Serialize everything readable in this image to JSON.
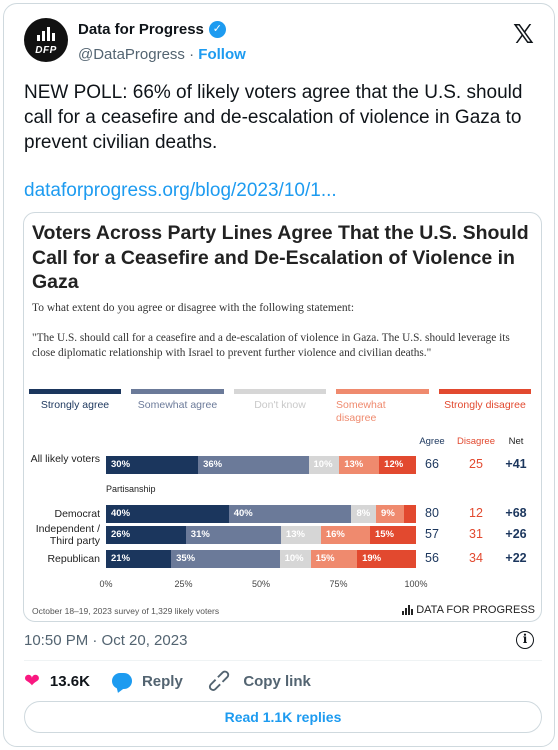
{
  "account": {
    "name": "Data for Progress",
    "handle": "@DataProgress",
    "separator": "·",
    "follow_label": "Follow",
    "avatar_text": "DFP"
  },
  "tweet": {
    "text": "NEW POLL: 66% of likely voters agree that the U.S. should call for a ceasefire and de-escalation of violence in Gaza to prevent civilian deaths.",
    "link": "dataforprogress.org/blog/2023/10/1...",
    "timestamp": "10:50 PM · Oct 20, 2023"
  },
  "chart": {
    "title": "Voters Across Party Lines Agree That the U.S. Should Call for a Ceasefire and De-Escalation of Violence in Gaza",
    "subtitle": "To what extent do you agree or disagree with the following statement:",
    "quote": "\"The U.S. should call for a ceasefire and a de-escalation of violence in Gaza. The U.S. should leverage its close diplomatic relationship with Israel to prevent further violence and civilian deaths.\"",
    "legend": [
      "Strongly agree",
      "Somewhat agree",
      "Don't know",
      "Somewhat disagree",
      "Strongly disagree"
    ],
    "colors": [
      "#1b365d",
      "#6b7a99",
      "#d6d6d6",
      "#ef8a6e",
      "#e2492f"
    ],
    "columns": [
      "Agree",
      "Disagree",
      "Net"
    ],
    "group_label": "Partisanship",
    "footnote": "October 18–19, 2023 survey of 1,329 likely voters",
    "brand": "DATA FOR PROGRESS"
  },
  "chart_data": {
    "type": "bar",
    "stacked": true,
    "orientation": "horizontal",
    "categories": [
      "All likely voters",
      "Democrat",
      "Independent / Third party",
      "Republican"
    ],
    "series": [
      {
        "name": "Strongly agree",
        "values": [
          30,
          40,
          26,
          21
        ],
        "labels": [
          "30%",
          "40%",
          "26%",
          "21%"
        ]
      },
      {
        "name": "Somewhat agree",
        "values": [
          36,
          40,
          31,
          35
        ],
        "labels": [
          "36%",
          "40%",
          "31%",
          "35%"
        ]
      },
      {
        "name": "Don't know",
        "values": [
          10,
          8,
          13,
          10
        ],
        "labels": [
          "10%",
          "8%",
          "13%",
          "10%"
        ]
      },
      {
        "name": "Somewhat disagree",
        "values": [
          13,
          9,
          16,
          15
        ],
        "labels": [
          "13%",
          "9%",
          "16%",
          "15%"
        ]
      },
      {
        "name": "Strongly disagree",
        "values": [
          12,
          4,
          15,
          19
        ],
        "labels": [
          "12%",
          "",
          "15%",
          "19%"
        ]
      }
    ],
    "agree": [
      "66",
      "80",
      "57",
      "56"
    ],
    "disagree": [
      "25",
      "12",
      "31",
      "34"
    ],
    "net": [
      "+41",
      "+68",
      "+26",
      "+22"
    ],
    "xlim": [
      0,
      100
    ],
    "x_ticks": [
      "0%",
      "25%",
      "50%",
      "75%",
      "100%"
    ]
  },
  "engagement": {
    "likes": "13.6K",
    "reply_label": "Reply",
    "copy_link_label": "Copy link",
    "read_replies_label": "Read 1.1K replies"
  },
  "icons": {
    "verified": "verified-check-icon",
    "platform": "x-logo-icon",
    "info": "info-icon",
    "like": "heart-icon",
    "reply": "reply-bubble-icon",
    "copy": "link-icon"
  }
}
